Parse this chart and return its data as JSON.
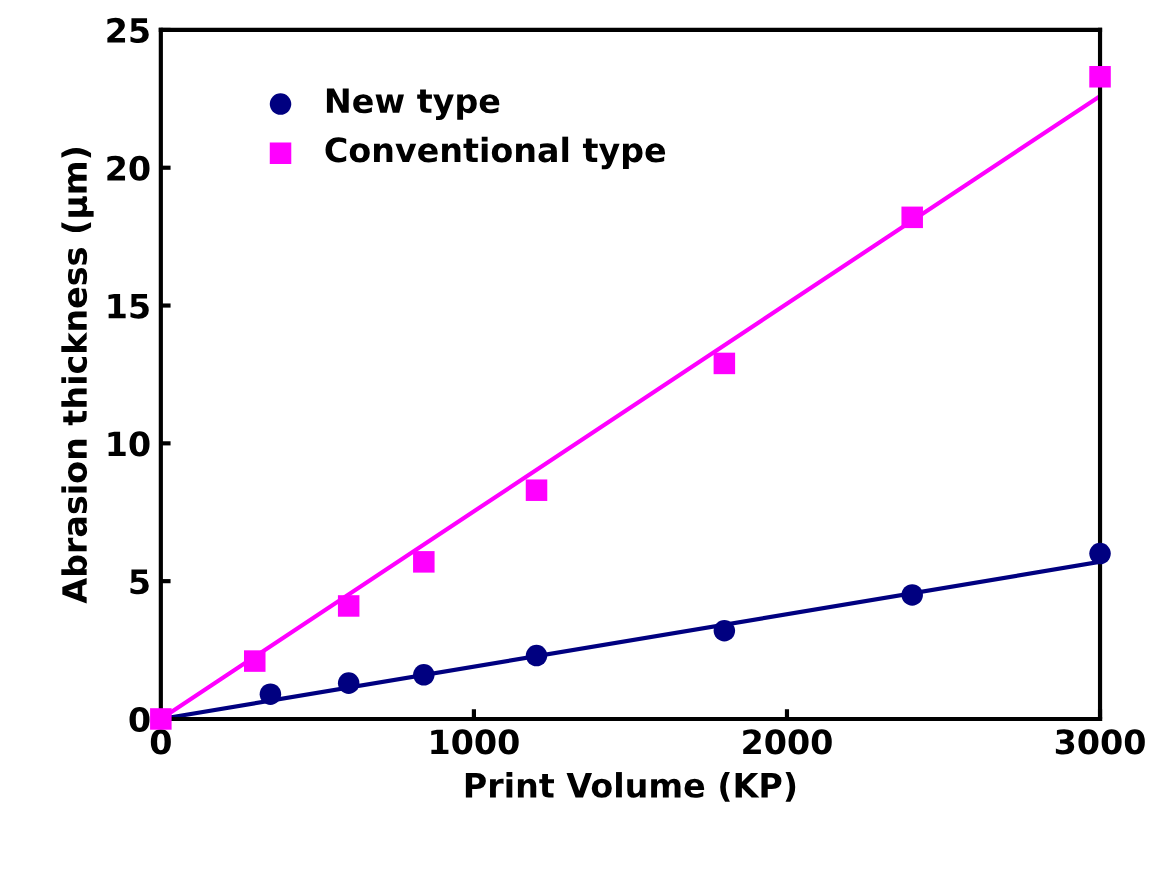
{
  "chart_data": {
    "type": "scatter",
    "xlabel": "Print Volume (KP)",
    "ylabel": "Abrasion thickness (μm)",
    "xlim": [
      0,
      3000
    ],
    "xticks": [
      0,
      1000,
      2000,
      3000
    ],
    "ylim": [
      0,
      25
    ],
    "yticks": [
      0,
      5,
      10,
      15,
      20,
      25
    ],
    "grid": false,
    "legend": "top left",
    "series": [
      {
        "name": "New type",
        "color": "#000080",
        "marker": "circle",
        "x": [
          350,
          600,
          840,
          1200,
          1800,
          2400,
          3000
        ],
        "values": [
          0.9,
          1.3,
          1.6,
          2.3,
          3.2,
          4.5,
          6.0
        ]
      },
      {
        "name": "Conventional type",
        "color": "#ff00ff",
        "marker": "square",
        "x": [
          0,
          300,
          600,
          840,
          1200,
          1800,
          2400,
          3000
        ],
        "values": [
          0,
          2.1,
          4.1,
          5.7,
          8.3,
          12.9,
          18.2,
          23.3
        ]
      },
      {
        "type": "line",
        "color": "#000080",
        "marker": "none",
        "x": [
          0,
          3000
        ],
        "values": [
          0,
          5.7
        ]
      },
      {
        "type": "line",
        "color": "#ff00ff",
        "marker": "none",
        "x": [
          0,
          3000
        ],
        "values": [
          0,
          22.6
        ]
      }
    ]
  }
}
